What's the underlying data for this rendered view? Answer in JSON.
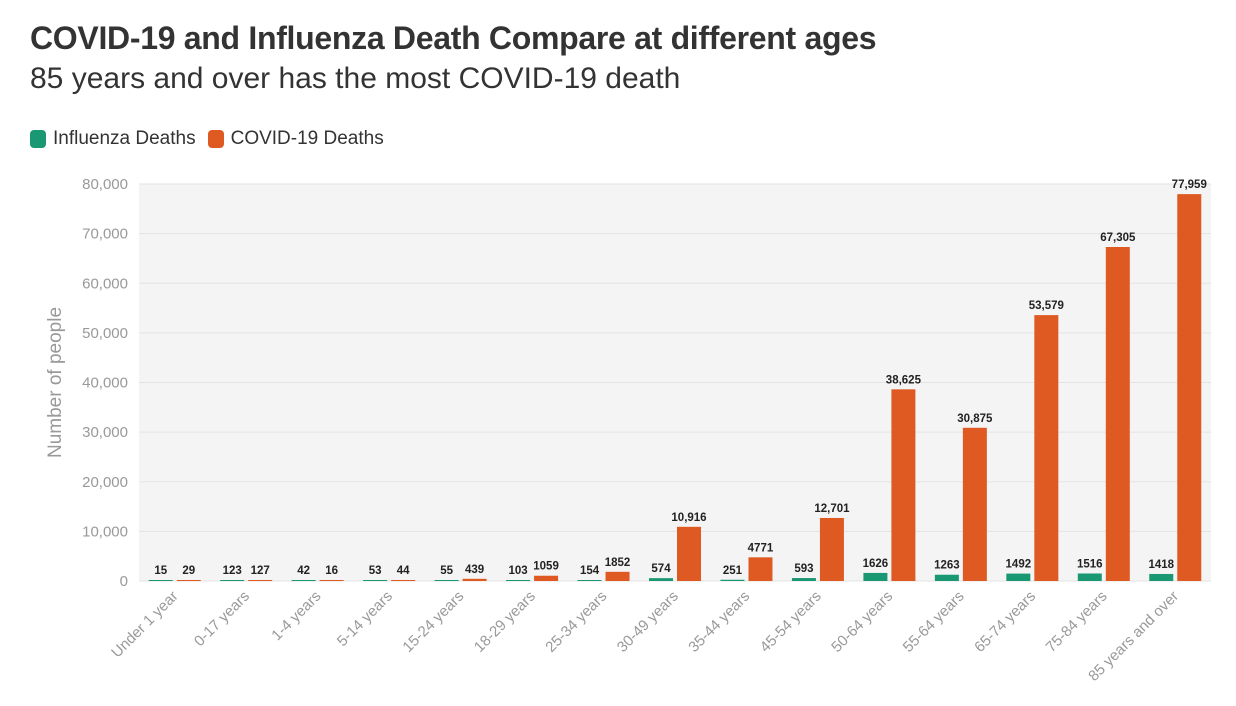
{
  "title": "COVID-19 and Influenza Death Compare at different ages",
  "subtitle": "85 years and over has the most COVID-19 death",
  "legend": {
    "influenza": "Influenza Deaths",
    "covid": "COVID-19 Deaths"
  },
  "colors": {
    "influenza": "#1a9873",
    "covid": "#de5a22",
    "plot_bg": "#f4f4f4",
    "grid": "#e3e3e3",
    "axis_text": "#999999",
    "label_text": "#222222"
  },
  "chart_data": {
    "type": "bar",
    "title": "COVID-19 and Influenza Death Compare at different ages",
    "subtitle": "85 years and over has the most COVID-19 death",
    "xlabel": "",
    "ylabel": "Number of people",
    "ylim": [
      0,
      80000
    ],
    "yticks": [
      0,
      10000,
      20000,
      30000,
      40000,
      50000,
      60000,
      70000,
      80000
    ],
    "ytick_labels": [
      "0",
      "10,000",
      "20,000",
      "30,000",
      "40,000",
      "50,000",
      "60,000",
      "70,000",
      "80,000"
    ],
    "grid": true,
    "legend_position": "top-left",
    "categories": [
      "Under 1 year",
      "0-17 years",
      "1-4 years",
      "5-14 years",
      "15-24 years",
      "18-29 years",
      "25-34 years",
      "30-49 years",
      "35-44 years",
      "45-54 years",
      "50-64 years",
      "55-64 years",
      "65-74 years",
      "75-84 years",
      "85 years and over"
    ],
    "series": [
      {
        "name": "Influenza Deaths",
        "values": [
          15,
          123,
          42,
          53,
          55,
          103,
          154,
          574,
          251,
          593,
          1626,
          1263,
          1492,
          1516,
          1418
        ],
        "labels": [
          "15",
          "123",
          "42",
          "53",
          "55",
          "103",
          "154",
          "574",
          "251",
          "593",
          "1626",
          "1263",
          "1492",
          "1516",
          "1418"
        ]
      },
      {
        "name": "COVID-19 Deaths",
        "values": [
          29,
          127,
          16,
          44,
          439,
          1059,
          1852,
          10916,
          4771,
          12701,
          38625,
          30875,
          53579,
          67305,
          77959
        ],
        "labels": [
          "29",
          "127",
          "16",
          "44",
          "439",
          "1059",
          "1852",
          "10,916",
          "4771",
          "12,701",
          "38,625",
          "30,875",
          "53,579",
          "67,305",
          "77,959"
        ]
      }
    ]
  }
}
